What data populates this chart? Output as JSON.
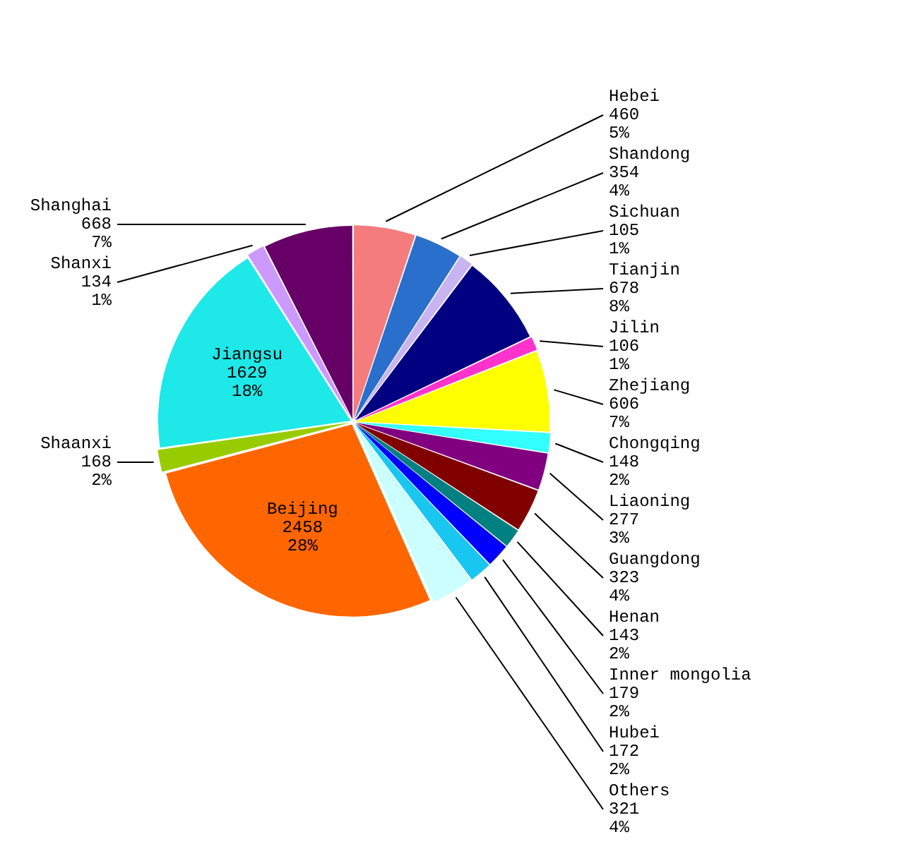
{
  "chart_data": {
    "type": "pie",
    "categories": [
      "Hebei",
      "Shandong",
      "Sichuan",
      "Tianjin",
      "Jilin",
      "Zhejiang",
      "Chongqing",
      "Liaoning",
      "Guangdong",
      "Henan",
      "Inner mongolia",
      "Hubei",
      "Others",
      "Beijing",
      "Shaanxi",
      "Jiangsu",
      "Shanxi",
      "Shanghai"
    ],
    "values": [
      460,
      354,
      105,
      678,
      106,
      606,
      148,
      277,
      323,
      143,
      179,
      172,
      321,
      2458,
      168,
      1629,
      134,
      668
    ],
    "value_labels": [
      "460\n5%",
      "354\n4%",
      "105\n1%",
      "678\n8%",
      "106\n1%",
      "606\n7%",
      "148\n2%",
      "277\n3%",
      "323\n4%",
      "143\n2%",
      "179\n2%",
      "172\n2%",
      "321\n4%",
      "2458\n28%",
      "168\n2%",
      "1629\n18%",
      "134\n1%",
      "668\n7%"
    ],
    "colors": [
      "#f47c7c",
      "#2a6fcc",
      "#c8b4f0",
      "#000080",
      "#ff33cc",
      "#ffff00",
      "#33ffff",
      "#800080",
      "#800000",
      "#008080",
      "#0000ff",
      "#19c6f0",
      "#ccffff",
      "#ff6600",
      "#99cc00",
      "#1ee8e8",
      "#cc99ff",
      "#660066"
    ]
  }
}
